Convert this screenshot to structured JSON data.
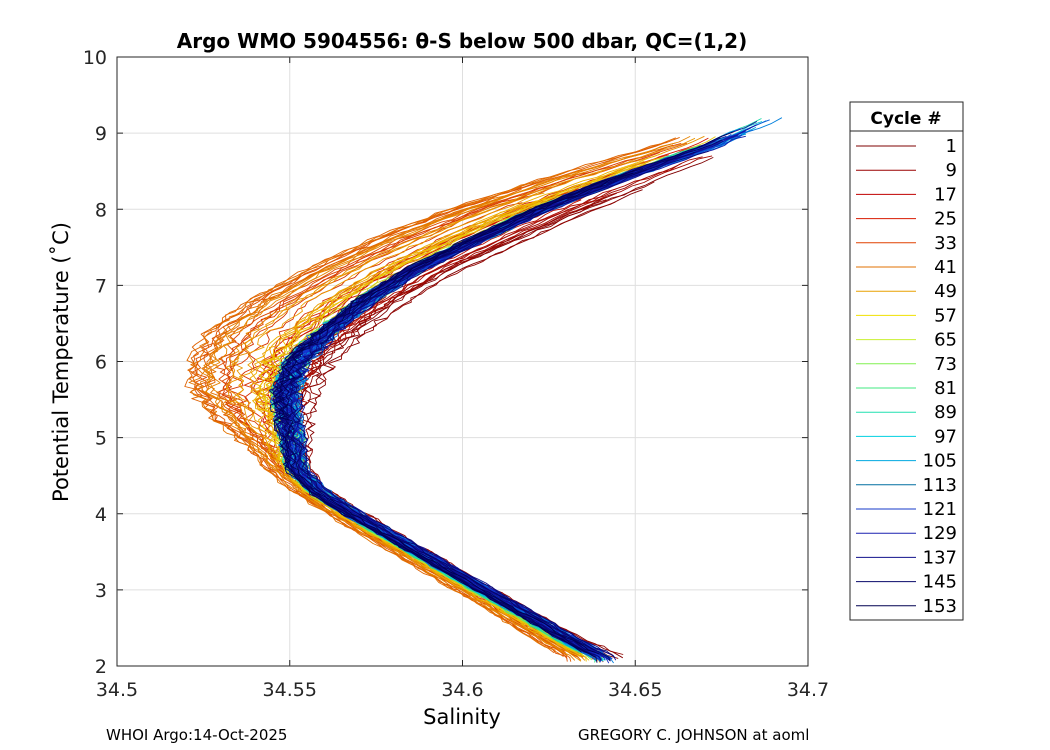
{
  "chart_data": {
    "type": "line",
    "title": "Argo WMO 5904556: θ-S below 500 dbar,  QC=(1,2)",
    "xlabel": "Salinity",
    "ylabel": "Potential Temperature (˚C)",
    "xlim": [
      34.5,
      34.7
    ],
    "ylim": [
      2,
      10
    ],
    "xticks": [
      34.5,
      34.55,
      34.6,
      34.65,
      34.7
    ],
    "xtick_labels": [
      "34.5",
      "34.55",
      "34.6",
      "34.65",
      "34.7"
    ],
    "yticks": [
      2,
      3,
      4,
      5,
      6,
      7,
      8,
      9,
      10
    ],
    "ytick_labels": [
      "2",
      "3",
      "4",
      "5",
      "6",
      "7",
      "8",
      "9",
      "10"
    ],
    "grid": true,
    "legend_title": "Cycle #",
    "legend_position": "right",
    "legend_entries": [
      "1",
      "9",
      "17",
      "25",
      "33",
      "41",
      "49",
      "57",
      "65",
      "73",
      "81",
      "89",
      "97",
      "105",
      "113",
      "121",
      "129",
      "137",
      "145",
      "153"
    ],
    "legend_colors": [
      "#7f0000",
      "#9a0000",
      "#c00000",
      "#d81a00",
      "#e04000",
      "#e27000",
      "#e8a000",
      "#f0e000",
      "#c8f030",
      "#80f050",
      "#40e880",
      "#20e0b0",
      "#00d0e0",
      "#00a8e0",
      "#006ea0",
      "#1438c8",
      "#1a20b0",
      "#10108c",
      "#08086a",
      "#000050"
    ],
    "profile_shape": {
      "theta": [
        9.1,
        8.8,
        8.4,
        8.0,
        7.6,
        7.2,
        6.8,
        6.4,
        6.0,
        5.6,
        5.2,
        4.9,
        4.6,
        4.3,
        4.0,
        3.6,
        3.2,
        2.8,
        2.4,
        2.1
      ],
      "salinity_reference": [
        34.685,
        34.67,
        34.645,
        34.623,
        34.604,
        34.586,
        34.572,
        34.561,
        34.552,
        34.549,
        34.55,
        34.551,
        34.552,
        34.558,
        34.568,
        34.583,
        34.598,
        34.613,
        34.628,
        34.64
      ],
      "salinity_fresh_extreme": [
        34.675,
        34.655,
        34.625,
        34.598,
        34.575,
        34.556,
        34.54,
        34.528,
        34.523,
        34.524,
        34.531,
        34.539,
        34.545,
        34.553,
        34.563,
        34.578,
        34.593,
        34.608,
        34.622,
        34.633
      ],
      "salinity_salty_extreme": [
        34.69,
        34.68,
        34.66,
        34.638,
        34.618,
        34.598,
        34.583,
        34.571,
        34.561,
        34.555,
        34.553,
        34.553,
        34.553,
        34.559,
        34.57,
        34.585,
        34.6,
        34.616,
        34.632,
        34.648
      ]
    }
  },
  "footer": {
    "left": "WHOI Argo:14-Oct-2025",
    "right": "GREGORY C. JOHNSON at aoml"
  }
}
